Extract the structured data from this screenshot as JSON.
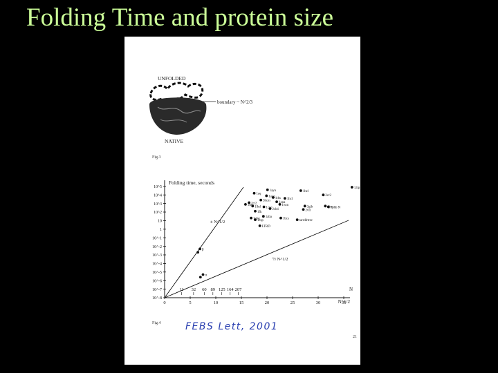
{
  "slide": {
    "title": "Folding Time and protein size",
    "title_color": "#ccff99"
  },
  "figure_top": {
    "caption": "Fig.3",
    "unfolded_label": "UNFOLDED",
    "native_label": "NATIVE",
    "boundary_label": "boundary ~ N^2/3"
  },
  "chart_data": {
    "type": "scatter",
    "title": "",
    "ylabel": "Folding time, seconds",
    "xlabel": "N^1/2",
    "x_top_label": "N",
    "y_scale": "log",
    "y_ticks": [
      "10^-8",
      "10^-7",
      "10^-6",
      "10^-5",
      "10^-4",
      "10^-3",
      "10^-2",
      "10^-1",
      "1",
      "10",
      "10^2",
      "10^3",
      "10^4",
      "10^5"
    ],
    "x_ticks": [
      "0",
      "5",
      "10",
      "15",
      "20",
      "25",
      "30",
      "35"
    ],
    "x_top_ticks": [
      "11",
      "32",
      "60",
      "89",
      "125",
      "164",
      "207"
    ],
    "line_labels": [
      "± N^1/2",
      "½ N^1/2"
    ],
    "points": [
      {
        "x": 20.1,
        "y": 4.6,
        "label": "1ayn"
      },
      {
        "x": 26.6,
        "y": 4.5,
        "label": "1hel"
      },
      {
        "x": 36.6,
        "y": 4.9,
        "label": "1,bp 2"
      },
      {
        "x": 17.5,
        "y": 4.2,
        "label": "1aq"
      },
      {
        "x": 19.9,
        "y": 3.9,
        "label": "1ayg"
      },
      {
        "x": 21.2,
        "y": 3.7,
        "label": "1ths"
      },
      {
        "x": 23.5,
        "y": 3.6,
        "label": "1hcl"
      },
      {
        "x": 31.0,
        "y": 4.0,
        "label": "2cr2"
      },
      {
        "x": 18.8,
        "y": 3.4,
        "label": "3hcm"
      },
      {
        "x": 21.9,
        "y": 3.2,
        "label": "1ona"
      },
      {
        "x": 22.5,
        "y": 2.9,
        "label": "1wtn"
      },
      {
        "x": 27.4,
        "y": 2.7,
        "label": "3gib"
      },
      {
        "x": 31.4,
        "y": 2.7,
        "label": "1jcn"
      },
      {
        "x": 32.0,
        "y": 2.6,
        "label": "1phb N"
      },
      {
        "x": 16.5,
        "y": 3.1,
        "label": "2ci2"
      },
      {
        "x": 15.8,
        "y": 2.9,
        "label": "1sec"
      },
      {
        "x": 17.2,
        "y": 2.7,
        "label": "1lbd"
      },
      {
        "x": 19.4,
        "y": 2.6,
        "label": "1cyc"
      },
      {
        "x": 20.6,
        "y": 2.4,
        "label": "2ch4"
      },
      {
        "x": 27.1,
        "y": 2.3,
        "label": "2vli"
      },
      {
        "x": 17.7,
        "y": 2.1,
        "label": "1fk"
      },
      {
        "x": 19.3,
        "y": 1.5,
        "label": "1aba"
      },
      {
        "x": 16.9,
        "y": 1.3,
        "label": "1ubq"
      },
      {
        "x": 17.7,
        "y": 1.1,
        "label": "1csp"
      },
      {
        "x": 22.7,
        "y": 1.3,
        "label": "1bcs"
      },
      {
        "x": 25.9,
        "y": 1.1,
        "label": "tarrdlrtrec"
      },
      {
        "x": 18.6,
        "y": 0.4,
        "label": "LTRD"
      },
      {
        "x": 6.9,
        "y": -2.3,
        "label": "β"
      },
      {
        "x": 6.5,
        "y": -2.7,
        "label": ""
      },
      {
        "x": 7.5,
        "y": -5.3,
        "label": "α"
      },
      {
        "x": 7.0,
        "y": -5.6,
        "label": ""
      }
    ]
  },
  "figure_bottom": {
    "caption": "Fig.4",
    "handwritten_note": "FEBS Lett, 2001",
    "page_number": "21"
  }
}
